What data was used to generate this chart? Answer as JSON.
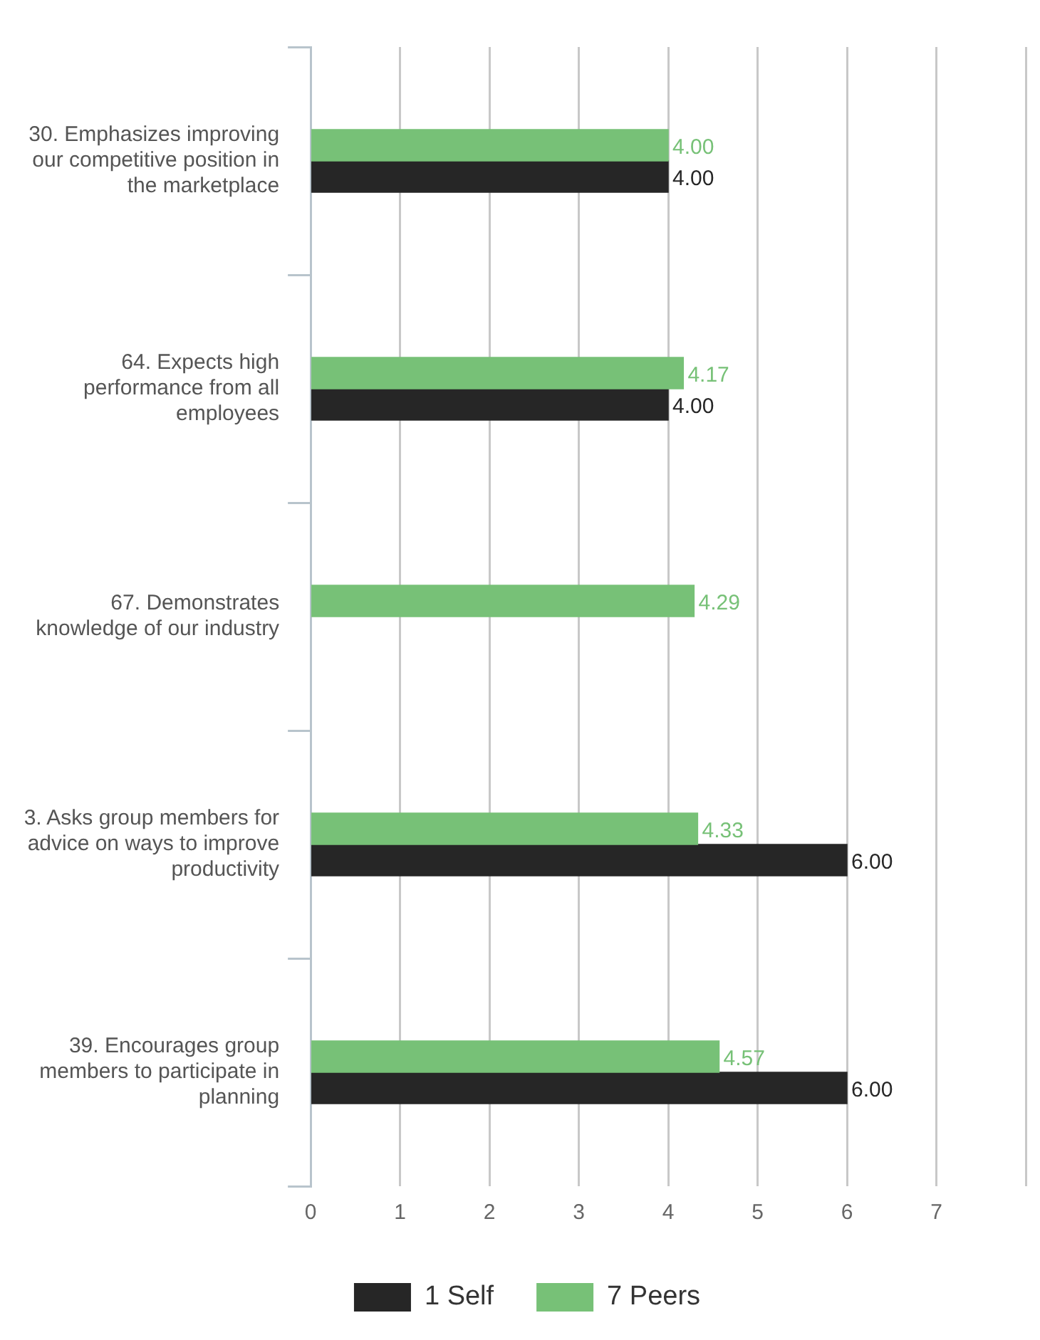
{
  "chart_data": {
    "type": "bar",
    "orientation": "horizontal",
    "categories": [
      "30. Emphasizes improving our competitive position in the marketplace",
      "64. Expects high performance from all employees",
      "67. Demonstrates knowledge of our industry",
      "3. Asks group members for advice on ways to improve productivity",
      "39. Encourages group members to participate in planning"
    ],
    "series": [
      {
        "name": "7 Peers",
        "color": "#77c177",
        "values": [
          4.0,
          4.17,
          4.29,
          4.33,
          4.57
        ],
        "value_labels": [
          "4.00",
          "4.17",
          "4.29",
          "4.33",
          "4.57"
        ]
      },
      {
        "name": "1 Self",
        "color": "#262626",
        "values": [
          4.0,
          4.0,
          null,
          6.0,
          6.0
        ],
        "value_labels": [
          "4.00",
          "4.00",
          null,
          "6.00",
          "6.00"
        ]
      }
    ],
    "xlim": [
      0,
      8
    ],
    "xticks": [
      0,
      1,
      2,
      3,
      4,
      5,
      6,
      7,
      {
        "value": 8,
        "label": null
      }
    ],
    "grid": "x",
    "legend": "bottom"
  }
}
